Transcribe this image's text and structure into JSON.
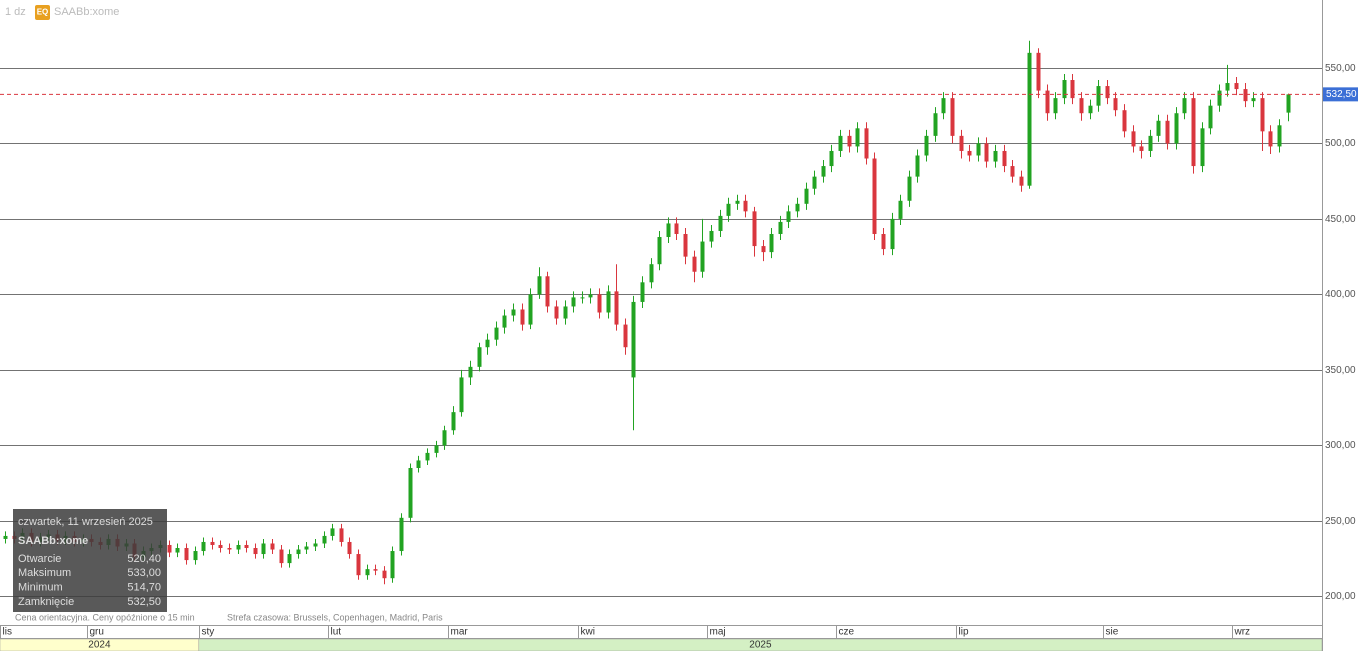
{
  "chart_data": {
    "type": "candlestick",
    "header": {
      "interval": "1 dz",
      "badge": "EQ",
      "symbol": "SAABb:xome"
    },
    "up_color": "#22a322",
    "down_color": "#d9363e",
    "xlim": [
      -0.6,
      153
    ],
    "ylim": [
      181,
      595
    ],
    "yticks": [
      {
        "value": 200,
        "label": "200,00"
      },
      {
        "value": 250,
        "label": "250,00"
      },
      {
        "value": 300,
        "label": "300,00"
      },
      {
        "value": 350,
        "label": "350,00"
      },
      {
        "value": 400,
        "label": "400,00"
      },
      {
        "value": 450,
        "label": "450,00"
      },
      {
        "value": 500,
        "label": "500,00"
      },
      {
        "value": 550,
        "label": "550,00"
      }
    ],
    "grid": true,
    "xticks": [
      {
        "value": -0.6,
        "label": "lis"
      },
      {
        "value": 9.5,
        "label": "gru"
      },
      {
        "value": 22.5,
        "label": "sty"
      },
      {
        "value": 37.5,
        "label": "lut"
      },
      {
        "value": 51.5,
        "label": "mar"
      },
      {
        "value": 66.5,
        "label": "kwi"
      },
      {
        "value": 81.5,
        "label": "maj"
      },
      {
        "value": 96.5,
        "label": "cze"
      },
      {
        "value": 110.5,
        "label": "lip"
      },
      {
        "value": 127.5,
        "label": "sie"
      },
      {
        "value": 142.5,
        "label": "wrz"
      }
    ],
    "years": [
      {
        "value": -0.6,
        "label": "2024"
      },
      {
        "value": 22.5,
        "label": "2025"
      }
    ],
    "last_price": {
      "value": 532.5,
      "label": "532,50"
    },
    "tooltip": {
      "date": "czwartek, 11 wrzesień 2025",
      "symbol": "SAABb:xome",
      "rows": [
        {
          "label": "Otwarcie",
          "value_label": "520,40"
        },
        {
          "label": "Maksimum",
          "value_label": "533,00"
        },
        {
          "label": "Minimum",
          "value_label": "514,70"
        },
        {
          "label": "Zamknięcie",
          "value_label": "532,50"
        }
      ]
    },
    "footnote": "Cena orientacyjna. Ceny opóźnione o 15 min",
    "timezone": "Strefa czasowa: Brussels, Copenhagen, Madrid, Paris",
    "open": [
      238,
      240,
      238,
      242,
      236,
      239,
      241,
      237,
      240,
      236,
      238,
      236,
      234,
      238,
      233,
      235,
      226,
      230,
      232,
      234,
      229,
      232,
      224,
      230,
      236,
      234,
      232,
      231,
      234,
      232,
      228,
      235,
      231,
      222,
      228,
      231,
      233,
      235,
      240,
      245,
      236,
      228,
      214,
      218,
      217,
      212,
      230,
      252,
      285,
      290,
      295,
      300,
      310,
      322,
      345,
      352,
      365,
      370,
      378,
      386,
      390,
      380,
      400,
      412,
      392,
      384,
      392,
      398,
      398,
      400,
      388,
      402,
      380,
      345,
      395,
      408,
      420,
      438,
      447,
      440,
      425,
      415,
      435,
      442,
      452,
      460,
      462,
      455,
      432,
      428,
      440,
      448,
      455,
      460,
      470,
      478,
      485,
      495,
      505,
      498,
      510,
      490,
      440,
      430,
      450,
      462,
      478,
      492,
      505,
      520,
      530,
      505,
      495,
      492,
      500,
      488,
      495,
      485,
      478,
      472,
      560,
      535,
      520,
      530,
      542,
      530,
      520,
      525,
      538,
      530,
      522,
      508,
      498,
      495,
      505,
      515,
      500,
      520,
      530,
      485,
      510,
      525,
      535,
      540,
      536,
      528,
      530,
      508,
      498,
      520.4
    ],
    "high": [
      243,
      243,
      245,
      245,
      242,
      244,
      244,
      243,
      243,
      241,
      241,
      239,
      241,
      241,
      238,
      238,
      233,
      235,
      237,
      237,
      235,
      235,
      233,
      239,
      239,
      237,
      235,
      237,
      237,
      235,
      238,
      238,
      234,
      231,
      234,
      236,
      238,
      243,
      248,
      248,
      239,
      231,
      221,
      221,
      220,
      233,
      255,
      288,
      293,
      298,
      303,
      313,
      326,
      350,
      356,
      368,
      374,
      382,
      390,
      394,
      394,
      404,
      418,
      415,
      396,
      396,
      402,
      402,
      404,
      404,
      406,
      420,
      384,
      399,
      412,
      424,
      442,
      451,
      451,
      444,
      429,
      450,
      446,
      456,
      464,
      466,
      466,
      458,
      436,
      444,
      452,
      459,
      464,
      474,
      482,
      489,
      499,
      509,
      509,
      514,
      514,
      494,
      444,
      454,
      466,
      482,
      496,
      509,
      524,
      534,
      534,
      509,
      499,
      504,
      504,
      499,
      499,
      489,
      482,
      568,
      563,
      539,
      534,
      546,
      546,
      534,
      529,
      542,
      542,
      534,
      526,
      512,
      502,
      509,
      519,
      519,
      524,
      534,
      534,
      514,
      529,
      539,
      552,
      544,
      540,
      534,
      534,
      512,
      516,
      533
    ],
    "low": [
      235,
      235,
      235,
      233,
      233,
      236,
      234,
      234,
      233,
      233,
      233,
      231,
      231,
      230,
      230,
      223,
      223,
      227,
      229,
      226,
      226,
      221,
      221,
      227,
      231,
      229,
      228,
      228,
      229,
      225,
      225,
      228,
      219,
      219,
      225,
      228,
      230,
      232,
      237,
      233,
      225,
      211,
      211,
      214,
      208,
      209,
      227,
      249,
      282,
      287,
      292,
      297,
      307,
      319,
      340,
      349,
      360,
      366,
      374,
      382,
      376,
      377,
      397,
      388,
      380,
      380,
      388,
      394,
      394,
      384,
      384,
      376,
      360,
      310,
      391,
      404,
      416,
      434,
      436,
      420,
      408,
      411,
      431,
      438,
      448,
      456,
      451,
      425,
      422,
      424,
      436,
      444,
      451,
      456,
      466,
      474,
      481,
      491,
      494,
      494,
      486,
      436,
      426,
      426,
      446,
      458,
      474,
      488,
      501,
      516,
      500,
      490,
      488,
      488,
      484,
      484,
      481,
      474,
      468,
      470,
      530,
      515,
      516,
      526,
      526,
      515,
      516,
      521,
      526,
      518,
      504,
      494,
      490,
      491,
      501,
      496,
      496,
      516,
      480,
      481,
      506,
      521,
      531,
      532,
      524,
      524,
      495,
      493,
      494,
      514.7
    ],
    "close": [
      240,
      238,
      242,
      236,
      239,
      241,
      237,
      240,
      236,
      238,
      236,
      234,
      238,
      233,
      235,
      226,
      230,
      232,
      234,
      229,
      232,
      224,
      230,
      236,
      234,
      232,
      231,
      234,
      232,
      228,
      235,
      231,
      222,
      228,
      231,
      233,
      235,
      240,
      245,
      236,
      228,
      214,
      218,
      217,
      212,
      230,
      252,
      285,
      290,
      295,
      300,
      310,
      322,
      345,
      352,
      365,
      370,
      378,
      386,
      390,
      380,
      400,
      412,
      392,
      384,
      392,
      398,
      398,
      400,
      388,
      402,
      380,
      365,
      395,
      408,
      420,
      438,
      447,
      440,
      425,
      415,
      435,
      442,
      452,
      460,
      462,
      455,
      432,
      428,
      440,
      448,
      455,
      460,
      470,
      478,
      485,
      495,
      505,
      498,
      510,
      490,
      440,
      430,
      450,
      462,
      478,
      492,
      505,
      520,
      530,
      505,
      495,
      492,
      500,
      488,
      495,
      485,
      478,
      472,
      560,
      535,
      520,
      530,
      542,
      530,
      520,
      525,
      538,
      530,
      522,
      508,
      498,
      495,
      505,
      515,
      500,
      520,
      530,
      485,
      510,
      525,
      535,
      540,
      536,
      528,
      530,
      508,
      498,
      512,
      532.5
    ]
  }
}
